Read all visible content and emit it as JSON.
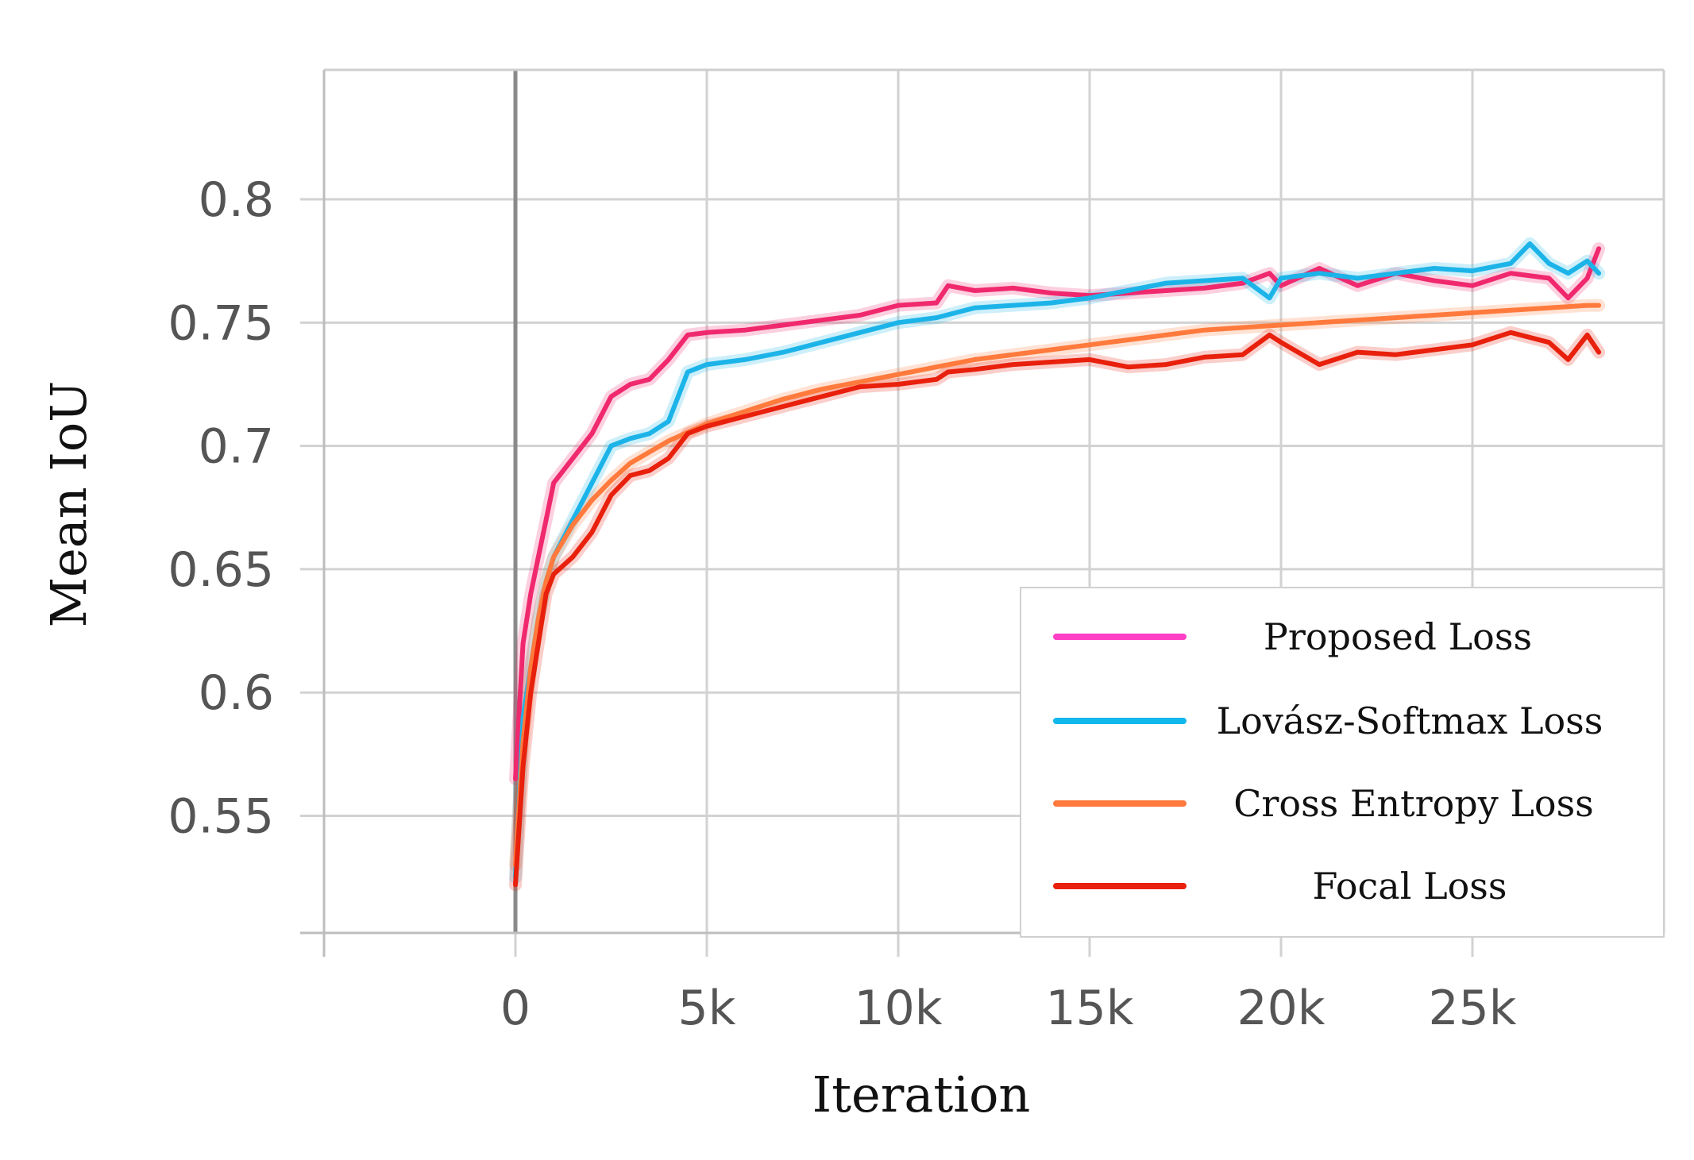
{
  "chart_data": {
    "type": "line",
    "title": "",
    "xlabel": "Iteration",
    "ylabel": "Mean IoU",
    "xlim": [
      -5000,
      30000
    ],
    "ylim": [
      0.5025,
      0.8525
    ],
    "xticks": [
      0,
      5000,
      10000,
      15000,
      20000,
      25000
    ],
    "xtick_labels": [
      "0",
      "5k",
      "10k",
      "15k",
      "20k",
      "25k"
    ],
    "yticks": [
      0.55,
      0.6,
      0.65,
      0.7,
      0.75,
      0.8
    ],
    "ytick_labels": [
      "0.55",
      "0.6",
      "0.65",
      "0.7",
      "0.75",
      "0.8"
    ],
    "grid": true,
    "legend_position": "bottom-right",
    "series": [
      {
        "name": "Proposed Loss",
        "color": "#f0286e",
        "legend_color": "#ff3fc6",
        "x": [
          0,
          200,
          400,
          600,
          800,
          1000,
          1500,
          2000,
          2500,
          3000,
          3500,
          4000,
          4500,
          5000,
          6000,
          7000,
          8000,
          9000,
          10000,
          11000,
          11300,
          12000,
          13000,
          14000,
          15000,
          16000,
          17000,
          18000,
          19000,
          19700,
          20000,
          21000,
          22000,
          23000,
          24000,
          25000,
          26000,
          27000,
          27500,
          28000,
          28300
        ],
        "y": [
          0.565,
          0.62,
          0.64,
          0.655,
          0.67,
          0.685,
          0.695,
          0.705,
          0.72,
          0.725,
          0.727,
          0.735,
          0.745,
          0.746,
          0.747,
          0.749,
          0.751,
          0.753,
          0.757,
          0.758,
          0.765,
          0.763,
          0.764,
          0.762,
          0.761,
          0.762,
          0.763,
          0.764,
          0.766,
          0.77,
          0.765,
          0.772,
          0.765,
          0.77,
          0.767,
          0.765,
          0.77,
          0.768,
          0.76,
          0.768,
          0.78
        ]
      },
      {
        "name": "Lovász-Softmax Loss",
        "color": "#1cb4e8",
        "legend_color": "#12b8ec",
        "x": [
          0,
          200,
          400,
          600,
          800,
          1000,
          1500,
          2000,
          2500,
          3000,
          3500,
          4000,
          4500,
          5000,
          6000,
          7000,
          8000,
          9000,
          10000,
          11000,
          12000,
          13000,
          14000,
          15000,
          16000,
          17000,
          18000,
          19000,
          19700,
          20000,
          21000,
          22000,
          23000,
          24000,
          25000,
          26000,
          26500,
          27000,
          27500,
          28000,
          28300
        ],
        "y": [
          0.525,
          0.59,
          0.61,
          0.63,
          0.645,
          0.655,
          0.67,
          0.685,
          0.7,
          0.703,
          0.705,
          0.71,
          0.73,
          0.733,
          0.735,
          0.738,
          0.742,
          0.746,
          0.75,
          0.752,
          0.756,
          0.757,
          0.758,
          0.76,
          0.763,
          0.766,
          0.767,
          0.768,
          0.76,
          0.768,
          0.77,
          0.768,
          0.77,
          0.772,
          0.771,
          0.774,
          0.782,
          0.774,
          0.77,
          0.775,
          0.77
        ]
      },
      {
        "name": "Cross Entropy Loss",
        "color": "#ff7a3c",
        "legend_color": "#ff7a3c",
        "x": [
          0,
          200,
          400,
          600,
          800,
          1000,
          1500,
          2000,
          2500,
          3000,
          4000,
          5000,
          6000,
          7000,
          8000,
          9000,
          10000,
          11000,
          12000,
          13000,
          14000,
          15000,
          16000,
          17000,
          18000,
          19000,
          20000,
          21000,
          22000,
          23000,
          24000,
          25000,
          26000,
          27000,
          28000,
          28300
        ],
        "y": [
          0.53,
          0.58,
          0.61,
          0.63,
          0.645,
          0.655,
          0.668,
          0.678,
          0.686,
          0.693,
          0.702,
          0.709,
          0.714,
          0.719,
          0.723,
          0.726,
          0.729,
          0.732,
          0.735,
          0.737,
          0.739,
          0.741,
          0.743,
          0.745,
          0.747,
          0.748,
          0.749,
          0.75,
          0.751,
          0.752,
          0.753,
          0.754,
          0.755,
          0.756,
          0.757,
          0.757
        ]
      },
      {
        "name": "Focal Loss",
        "color": "#e8200c",
        "legend_color": "#e8200c",
        "x": [
          0,
          200,
          400,
          600,
          800,
          1000,
          1500,
          2000,
          2500,
          3000,
          3500,
          4000,
          4500,
          5000,
          6000,
          7000,
          8000,
          9000,
          10000,
          11000,
          11300,
          12000,
          13000,
          14000,
          15000,
          16000,
          17000,
          18000,
          19000,
          19700,
          20000,
          21000,
          22000,
          23000,
          24000,
          25000,
          26000,
          27000,
          27500,
          28000,
          28300
        ],
        "y": [
          0.522,
          0.57,
          0.6,
          0.62,
          0.64,
          0.648,
          0.655,
          0.665,
          0.68,
          0.688,
          0.69,
          0.695,
          0.705,
          0.708,
          0.712,
          0.716,
          0.72,
          0.724,
          0.725,
          0.727,
          0.73,
          0.731,
          0.733,
          0.734,
          0.735,
          0.732,
          0.733,
          0.736,
          0.737,
          0.745,
          0.742,
          0.733,
          0.738,
          0.737,
          0.739,
          0.741,
          0.746,
          0.742,
          0.735,
          0.745,
          0.738
        ]
      }
    ]
  }
}
